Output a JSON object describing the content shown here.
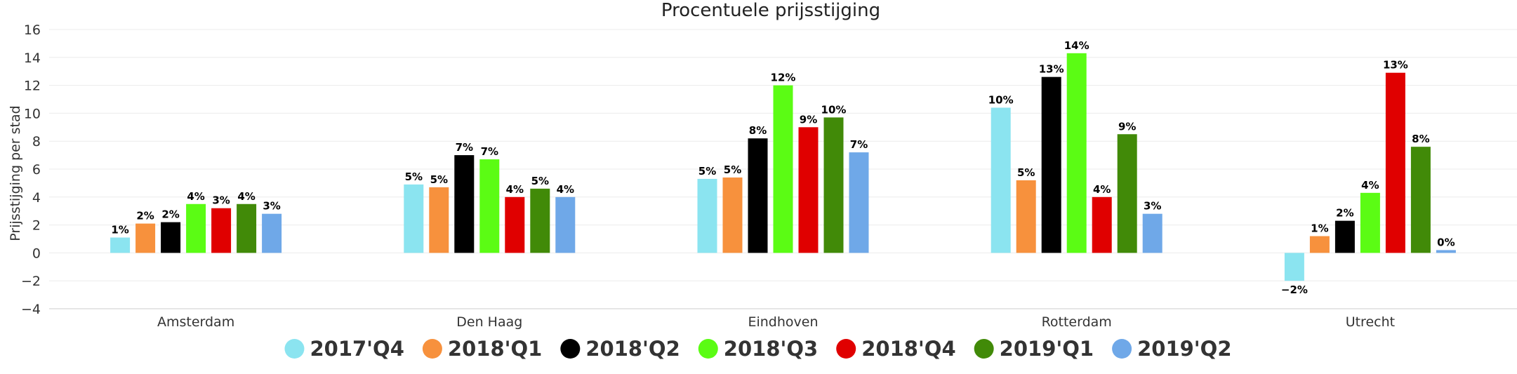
{
  "chart_data": {
    "type": "bar",
    "title": "Procentuele prijsstijging",
    "xlabel": "",
    "ylabel": "Prijsstijging per stad",
    "ylim": [
      -4,
      16
    ],
    "yticks": [
      -4,
      -2,
      0,
      2,
      4,
      6,
      8,
      10,
      12,
      14,
      16
    ],
    "grid": true,
    "legend": "bottom",
    "categories": [
      "Amsterdam",
      "Den Haag",
      "Eindhoven",
      "Rotterdam",
      "Utrecht"
    ],
    "series": [
      {
        "name": "2017'Q4",
        "color": "#8be4f0",
        "values": [
          1.1,
          4.9,
          5.3,
          10.4,
          -2.0
        ],
        "labels": [
          "1%",
          "5%",
          "5%",
          "10%",
          "-2%"
        ]
      },
      {
        "name": "2018'Q1",
        "color": "#f7913d",
        "values": [
          2.1,
          4.7,
          5.4,
          5.2,
          1.2
        ],
        "labels": [
          "2%",
          "5%",
          "5%",
          "5%",
          "1%"
        ]
      },
      {
        "name": "2018'Q2",
        "color": "#000000",
        "values": [
          2.2,
          7.0,
          8.2,
          12.6,
          2.3
        ],
        "labels": [
          "2%",
          "7%",
          "8%",
          "13%",
          "2%"
        ]
      },
      {
        "name": "2018'Q3",
        "color": "#5bfc14",
        "values": [
          3.5,
          6.7,
          12.0,
          14.3,
          4.3
        ],
        "labels": [
          "4%",
          "7%",
          "12%",
          "14%",
          "4%"
        ]
      },
      {
        "name": "2018'Q4",
        "color": "#e00000",
        "values": [
          3.2,
          4.0,
          9.0,
          4.0,
          12.9
        ],
        "labels": [
          "3%",
          "4%",
          "9%",
          "4%",
          "13%"
        ]
      },
      {
        "name": "2019'Q1",
        "color": "#418a08",
        "values": [
          3.5,
          4.6,
          9.7,
          8.5,
          7.6
        ],
        "labels": [
          "4%",
          "5%",
          "10%",
          "9%",
          "8%"
        ]
      },
      {
        "name": "2019'Q2",
        "color": "#6fa8e8",
        "values": [
          2.8,
          4.0,
          7.2,
          2.8,
          0.2
        ],
        "labels": [
          "3%",
          "4%",
          "7%",
          "3%",
          "0%"
        ]
      }
    ]
  }
}
